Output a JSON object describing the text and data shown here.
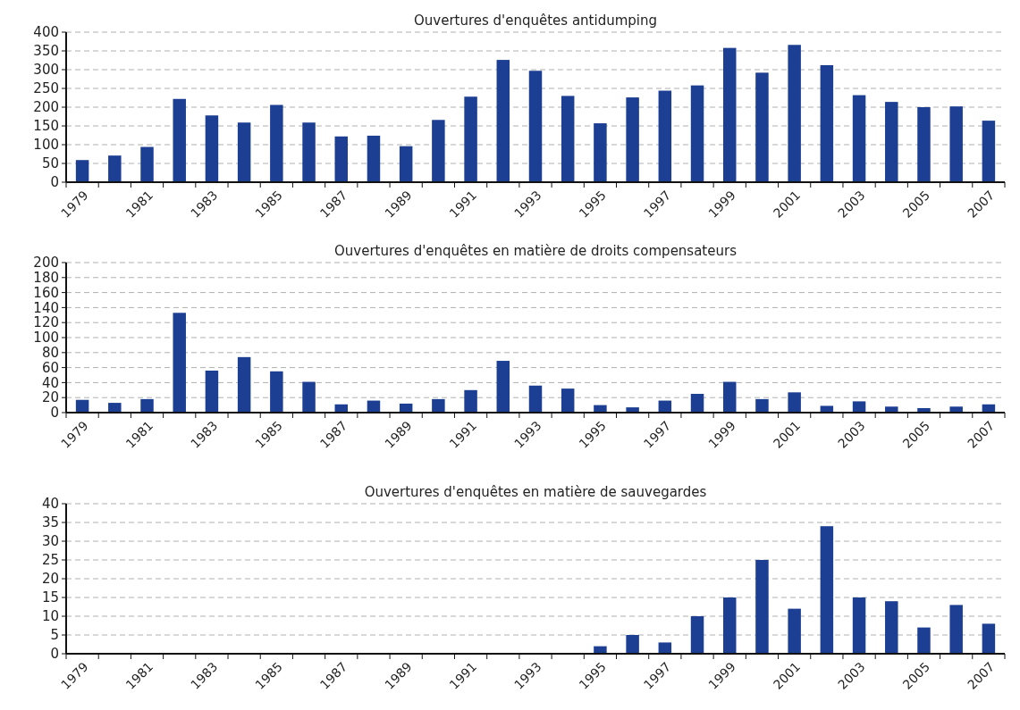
{
  "chart_data": [
    {
      "type": "bar",
      "title": "Ouvertures d'enquêtes antidumping",
      "categories": [
        "1979",
        null,
        "1981",
        null,
        "1983",
        null,
        "1985",
        null,
        "1987",
        null,
        "1989",
        null,
        "1991",
        null,
        "1993",
        null,
        "1995",
        null,
        "1997",
        null,
        "1999",
        null,
        "2001",
        null,
        "2003",
        null,
        "2005",
        null,
        "2007"
      ],
      "values": [
        59,
        71,
        94,
        222,
        178,
        159,
        206,
        159,
        122,
        124,
        96,
        166,
        228,
        326,
        297,
        230,
        157,
        226,
        244,
        258,
        358,
        292,
        366,
        312,
        232,
        214,
        200,
        202,
        164
      ],
      "color": "#1c3f94",
      "ylim": [
        0,
        400
      ],
      "yticks": [
        0,
        50,
        100,
        150,
        200,
        250,
        300,
        350,
        400
      ],
      "grid": "y"
    },
    {
      "type": "bar",
      "title": "Ouvertures d'enquêtes en matière de droits compensateurs",
      "categories": [
        "1979",
        null,
        "1981",
        null,
        "1983",
        null,
        "1985",
        null,
        "1987",
        null,
        "1989",
        null,
        "1991",
        null,
        "1993",
        null,
        "1995",
        null,
        "1997",
        null,
        "1999",
        null,
        "2001",
        null,
        "2003",
        null,
        "2005",
        null,
        "2007"
      ],
      "values": [
        17,
        13,
        18,
        133,
        56,
        74,
        55,
        41,
        11,
        16,
        12,
        18,
        30,
        69,
        36,
        32,
        10,
        7,
        16,
        25,
        41,
        18,
        27,
        9,
        15,
        8,
        6,
        8,
        11
      ],
      "color": "#1c3f94",
      "ylim": [
        0,
        200
      ],
      "yticks": [
        0,
        20,
        40,
        60,
        80,
        100,
        120,
        140,
        160,
        180,
        200
      ],
      "grid": "y"
    },
    {
      "type": "bar",
      "title": "Ouvertures d'enquêtes en matière de sauvegardes",
      "categories": [
        "1979",
        null,
        "1981",
        null,
        "1983",
        null,
        "1985",
        null,
        "1987",
        null,
        "1989",
        null,
        "1991",
        null,
        "1993",
        null,
        "1995",
        null,
        "1997",
        null,
        "1999",
        null,
        "2001",
        null,
        "2003",
        null,
        "2005",
        null,
        "2007"
      ],
      "values": [
        0,
        0,
        0,
        0,
        0,
        0,
        0,
        0,
        0,
        0,
        0,
        0,
        0,
        0,
        0,
        0,
        2,
        5,
        3,
        10,
        15,
        25,
        12,
        34,
        15,
        14,
        7,
        13,
        8
      ],
      "color": "#1c3f94",
      "ylim": [
        0,
        40
      ],
      "yticks": [
        0,
        5,
        10,
        15,
        20,
        25,
        30,
        35,
        40
      ],
      "grid": "y"
    }
  ]
}
